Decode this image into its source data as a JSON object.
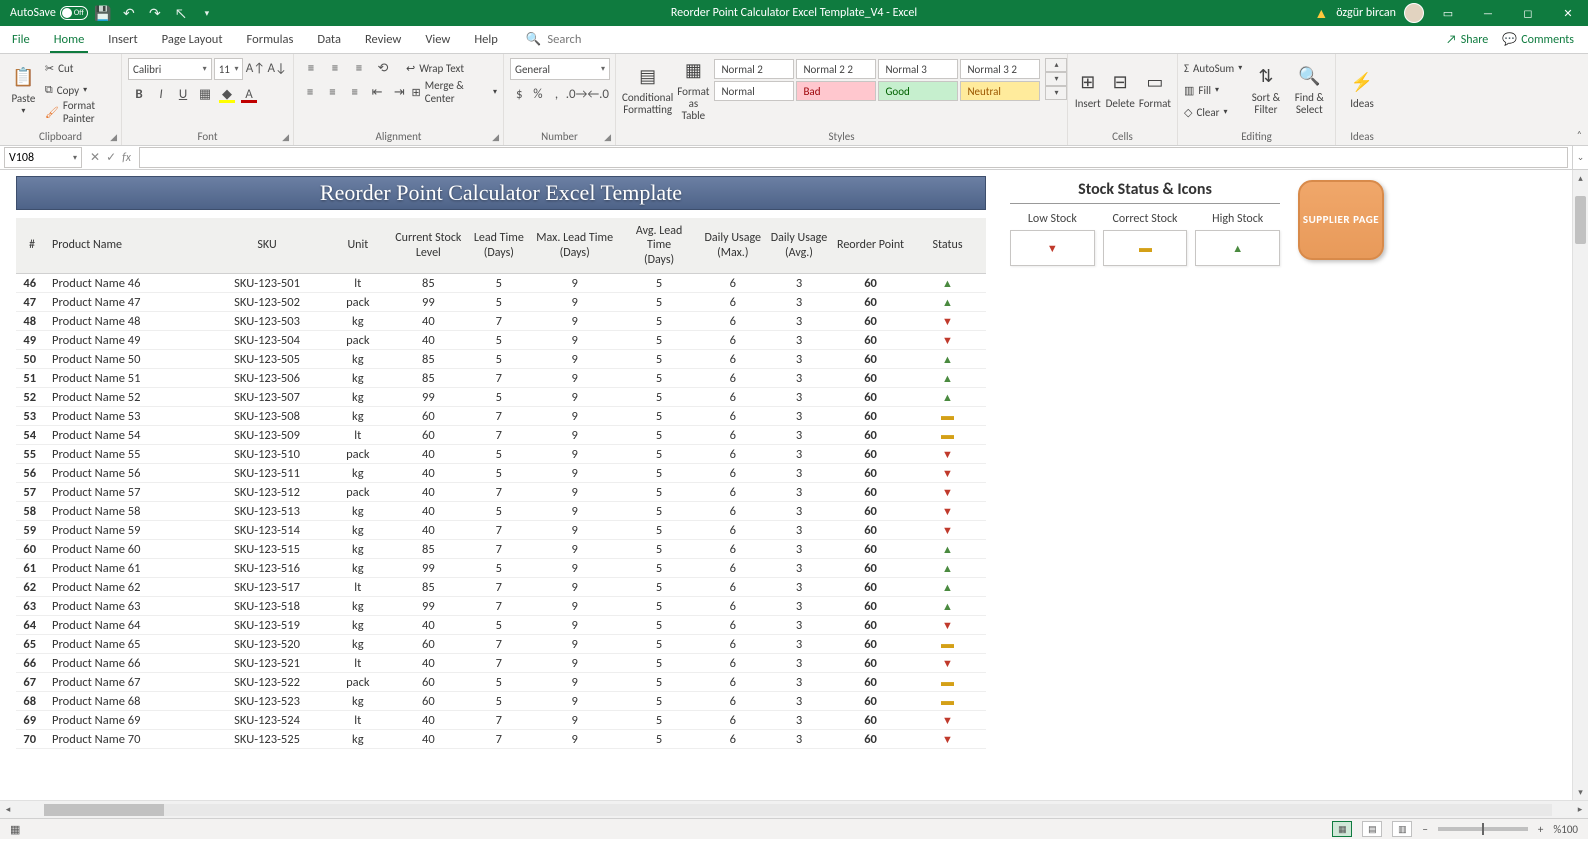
{
  "titlebar": {
    "autosave_label": "AutoSave",
    "autosave_state": "Off",
    "doc_title": "Reorder Point Calculator Excel Template_V4  -  Excel",
    "username": "özgür bircan"
  },
  "tabs": {
    "file": "File",
    "home": "Home",
    "insert": "Insert",
    "page_layout": "Page Layout",
    "formulas": "Formulas",
    "data": "Data",
    "review": "Review",
    "view": "View",
    "help": "Help",
    "tell_me": "Search",
    "share": "Share",
    "comments": "Comments"
  },
  "ribbon": {
    "paste": "Paste",
    "cut": "Cut",
    "copy": "Copy",
    "format_painter": "Format Painter",
    "clipboard": "Clipboard",
    "font_name": "Calibri",
    "font_size": "11",
    "font_group": "Font",
    "wrap": "Wrap Text",
    "merge": "Merge & Center",
    "alignment_group": "Alignment",
    "number_format": "General",
    "number_group": "Number",
    "cond_fmt": "Conditional Formatting",
    "fmt_table": "Format as Table",
    "styles": [
      [
        "Normal 2",
        "Normal 2 2",
        "Normal 3",
        "Normal 3 2"
      ],
      [
        "Normal",
        "Bad",
        "Good",
        "Neutral"
      ]
    ],
    "styles_group": "Styles",
    "insert": "Insert",
    "delete": "Delete",
    "format": "Format",
    "cells_group": "Cells",
    "autosum": "AutoSum",
    "fill": "Fill",
    "clear": "Clear",
    "sort_filter": "Sort & Filter",
    "find_select": "Find & Select",
    "editing_group": "Editing",
    "ideas": "Ideas",
    "ideas_group": "Ideas"
  },
  "formula_bar": {
    "name_box": "V108"
  },
  "sheet": {
    "title": "Reorder Point Calculator Excel Template",
    "headers": {
      "num": "#",
      "product": "Product Name",
      "sku": "SKU",
      "unit": "Unit",
      "stock": "Current Stock Level",
      "lead": "Lead Time (Days)",
      "maxlead": "Max. Lead Time (Days)",
      "avglead": "Avg. Lead Time (Days)",
      "maxuse": "Daily Usage (Max.)",
      "avguse": "Daily Usage (Avg.)",
      "reorder": "Reorder Point",
      "status": "Status"
    },
    "col_widths": {
      "num": 30,
      "product": 150,
      "sku": 110,
      "unit": 60,
      "stock": 72,
      "lead": 60,
      "maxlead": 82,
      "avglead": 76,
      "maxuse": 62,
      "avguse": 62,
      "reorder": 72,
      "status": 72
    },
    "rows": [
      {
        "n": 46,
        "name": "Product Name 46",
        "sku": "SKU-123-501",
        "unit": "lt",
        "stock": 85,
        "lead": 5,
        "maxlead": 9,
        "avglead": 5,
        "maxuse": 6,
        "avguse": 3,
        "reorder": 60,
        "status": "up"
      },
      {
        "n": 47,
        "name": "Product Name 47",
        "sku": "SKU-123-502",
        "unit": "pack",
        "stock": 99,
        "lead": 5,
        "maxlead": 9,
        "avglead": 5,
        "maxuse": 6,
        "avguse": 3,
        "reorder": 60,
        "status": "up"
      },
      {
        "n": 48,
        "name": "Product Name 48",
        "sku": "SKU-123-503",
        "unit": "kg",
        "stock": 40,
        "lead": 7,
        "maxlead": 9,
        "avglead": 5,
        "maxuse": 6,
        "avguse": 3,
        "reorder": 60,
        "status": "dn"
      },
      {
        "n": 49,
        "name": "Product Name 49",
        "sku": "SKU-123-504",
        "unit": "pack",
        "stock": 40,
        "lead": 5,
        "maxlead": 9,
        "avglead": 5,
        "maxuse": 6,
        "avguse": 3,
        "reorder": 60,
        "status": "dn"
      },
      {
        "n": 50,
        "name": "Product Name 50",
        "sku": "SKU-123-505",
        "unit": "kg",
        "stock": 85,
        "lead": 5,
        "maxlead": 9,
        "avglead": 5,
        "maxuse": 6,
        "avguse": 3,
        "reorder": 60,
        "status": "up"
      },
      {
        "n": 51,
        "name": "Product Name 51",
        "sku": "SKU-123-506",
        "unit": "kg",
        "stock": 85,
        "lead": 7,
        "maxlead": 9,
        "avglead": 5,
        "maxuse": 6,
        "avguse": 3,
        "reorder": 60,
        "status": "up"
      },
      {
        "n": 52,
        "name": "Product Name 52",
        "sku": "SKU-123-507",
        "unit": "kg",
        "stock": 99,
        "lead": 5,
        "maxlead": 9,
        "avglead": 5,
        "maxuse": 6,
        "avguse": 3,
        "reorder": 60,
        "status": "up"
      },
      {
        "n": 53,
        "name": "Product Name 53",
        "sku": "SKU-123-508",
        "unit": "kg",
        "stock": 60,
        "lead": 7,
        "maxlead": 9,
        "avglead": 5,
        "maxuse": 6,
        "avguse": 3,
        "reorder": 60,
        "status": "eq"
      },
      {
        "n": 54,
        "name": "Product Name 54",
        "sku": "SKU-123-509",
        "unit": "lt",
        "stock": 60,
        "lead": 7,
        "maxlead": 9,
        "avglead": 5,
        "maxuse": 6,
        "avguse": 3,
        "reorder": 60,
        "status": "eq"
      },
      {
        "n": 55,
        "name": "Product Name 55",
        "sku": "SKU-123-510",
        "unit": "pack",
        "stock": 40,
        "lead": 5,
        "maxlead": 9,
        "avglead": 5,
        "maxuse": 6,
        "avguse": 3,
        "reorder": 60,
        "status": "dn"
      },
      {
        "n": 56,
        "name": "Product Name 56",
        "sku": "SKU-123-511",
        "unit": "kg",
        "stock": 40,
        "lead": 5,
        "maxlead": 9,
        "avglead": 5,
        "maxuse": 6,
        "avguse": 3,
        "reorder": 60,
        "status": "dn"
      },
      {
        "n": 57,
        "name": "Product Name 57",
        "sku": "SKU-123-512",
        "unit": "pack",
        "stock": 40,
        "lead": 7,
        "maxlead": 9,
        "avglead": 5,
        "maxuse": 6,
        "avguse": 3,
        "reorder": 60,
        "status": "dn"
      },
      {
        "n": 58,
        "name": "Product Name 58",
        "sku": "SKU-123-513",
        "unit": "kg",
        "stock": 40,
        "lead": 5,
        "maxlead": 9,
        "avglead": 5,
        "maxuse": 6,
        "avguse": 3,
        "reorder": 60,
        "status": "dn"
      },
      {
        "n": 59,
        "name": "Product Name 59",
        "sku": "SKU-123-514",
        "unit": "kg",
        "stock": 40,
        "lead": 7,
        "maxlead": 9,
        "avglead": 5,
        "maxuse": 6,
        "avguse": 3,
        "reorder": 60,
        "status": "dn"
      },
      {
        "n": 60,
        "name": "Product Name 60",
        "sku": "SKU-123-515",
        "unit": "kg",
        "stock": 85,
        "lead": 7,
        "maxlead": 9,
        "avglead": 5,
        "maxuse": 6,
        "avguse": 3,
        "reorder": 60,
        "status": "up"
      },
      {
        "n": 61,
        "name": "Product Name 61",
        "sku": "SKU-123-516",
        "unit": "kg",
        "stock": 99,
        "lead": 5,
        "maxlead": 9,
        "avglead": 5,
        "maxuse": 6,
        "avguse": 3,
        "reorder": 60,
        "status": "up"
      },
      {
        "n": 62,
        "name": "Product Name 62",
        "sku": "SKU-123-517",
        "unit": "lt",
        "stock": 85,
        "lead": 7,
        "maxlead": 9,
        "avglead": 5,
        "maxuse": 6,
        "avguse": 3,
        "reorder": 60,
        "status": "up"
      },
      {
        "n": 63,
        "name": "Product Name 63",
        "sku": "SKU-123-518",
        "unit": "kg",
        "stock": 99,
        "lead": 7,
        "maxlead": 9,
        "avglead": 5,
        "maxuse": 6,
        "avguse": 3,
        "reorder": 60,
        "status": "up"
      },
      {
        "n": 64,
        "name": "Product Name 64",
        "sku": "SKU-123-519",
        "unit": "kg",
        "stock": 40,
        "lead": 5,
        "maxlead": 9,
        "avglead": 5,
        "maxuse": 6,
        "avguse": 3,
        "reorder": 60,
        "status": "dn"
      },
      {
        "n": 65,
        "name": "Product Name 65",
        "sku": "SKU-123-520",
        "unit": "kg",
        "stock": 60,
        "lead": 7,
        "maxlead": 9,
        "avglead": 5,
        "maxuse": 6,
        "avguse": 3,
        "reorder": 60,
        "status": "eq"
      },
      {
        "n": 66,
        "name": "Product Name 66",
        "sku": "SKU-123-521",
        "unit": "lt",
        "stock": 40,
        "lead": 7,
        "maxlead": 9,
        "avglead": 5,
        "maxuse": 6,
        "avguse": 3,
        "reorder": 60,
        "status": "dn"
      },
      {
        "n": 67,
        "name": "Product Name 67",
        "sku": "SKU-123-522",
        "unit": "pack",
        "stock": 60,
        "lead": 5,
        "maxlead": 9,
        "avglead": 5,
        "maxuse": 6,
        "avguse": 3,
        "reorder": 60,
        "status": "eq"
      },
      {
        "n": 68,
        "name": "Product Name 68",
        "sku": "SKU-123-523",
        "unit": "kg",
        "stock": 60,
        "lead": 5,
        "maxlead": 9,
        "avglead": 5,
        "maxuse": 6,
        "avguse": 3,
        "reorder": 60,
        "status": "eq"
      },
      {
        "n": 69,
        "name": "Product Name 69",
        "sku": "SKU-123-524",
        "unit": "lt",
        "stock": 40,
        "lead": 7,
        "maxlead": 9,
        "avglead": 5,
        "maxuse": 6,
        "avguse": 3,
        "reorder": 60,
        "status": "dn"
      },
      {
        "n": 70,
        "name": "Product Name 70",
        "sku": "SKU-123-525",
        "unit": "kg",
        "stock": 40,
        "lead": 7,
        "maxlead": 9,
        "avglead": 5,
        "maxuse": 6,
        "avguse": 3,
        "reorder": 60,
        "status": "dn"
      }
    ],
    "status_icons": {
      "up": "▲",
      "dn": "▼",
      "eq": "▬"
    },
    "status_colors": {
      "up": "#4a8a3f",
      "dn": "#c0392b",
      "eq": "#d4a017"
    }
  },
  "legend": {
    "title": "Stock Status & Icons",
    "low": "Low Stock",
    "correct": "Correct Stock",
    "high": "High Stock",
    "supplier_btn": "SUPPLIER PAGE"
  },
  "statusbar": {
    "zoom": "%100"
  },
  "colors": {
    "excel_green": "#0f7b3f",
    "banner_top": "#6b7fa3",
    "banner_bot": "#4e6388",
    "supplier_bg": "#e89a5a"
  }
}
